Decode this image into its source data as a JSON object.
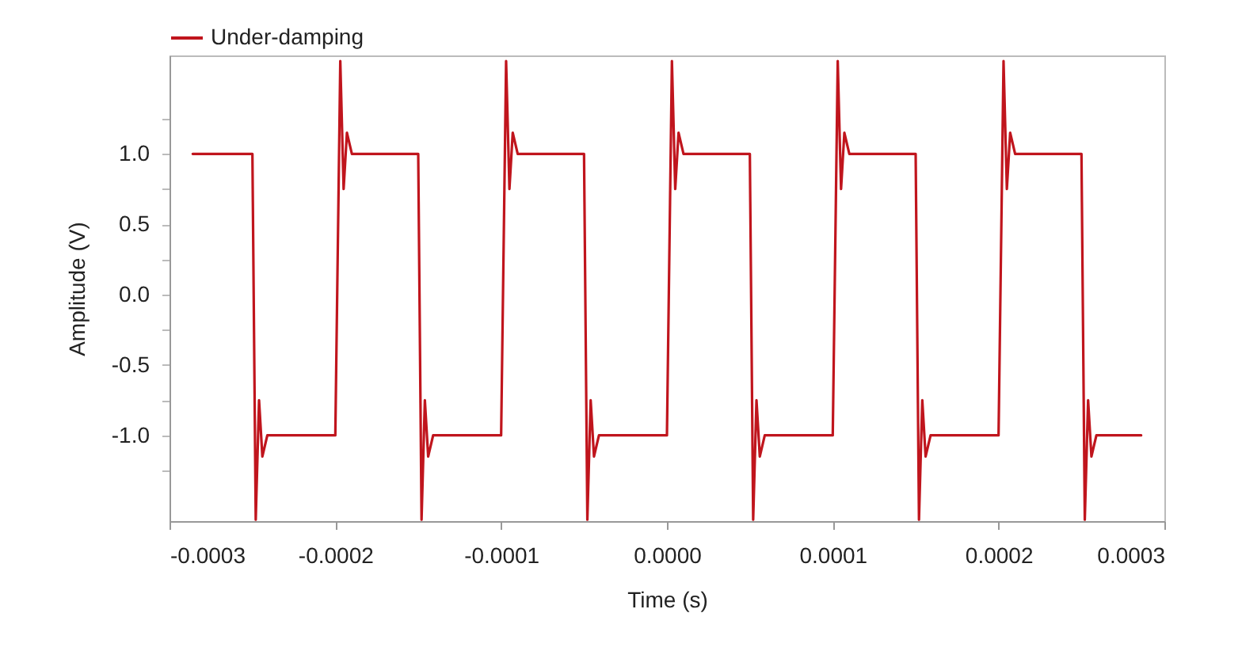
{
  "chart_data": {
    "type": "line",
    "xlabel": "Time (s)",
    "ylabel": "Amplitude (V)",
    "legend": "top",
    "xlim": [
      -0.0003,
      0.0003
    ],
    "ylim": [
      -1.61,
      1.7
    ],
    "xticks": [
      {
        "value": -0.0003,
        "label": "-0.0003"
      },
      {
        "value": -0.0002,
        "label": "-0.0002"
      },
      {
        "value": -0.0001,
        "label": "-0.0001"
      },
      {
        "value": 0,
        "label": "0.0000"
      },
      {
        "value": 0.0001,
        "label": "0.0001"
      },
      {
        "value": 0.0002,
        "label": "0.0002"
      },
      {
        "value": 0.0003,
        "label": "0.0003"
      }
    ],
    "yticks": [
      {
        "value": -1.25,
        "label": null
      },
      {
        "value": -1,
        "label": "-1.0"
      },
      {
        "value": -0.75,
        "label": null
      },
      {
        "value": -0.5,
        "label": "-0.5"
      },
      {
        "value": -0.25,
        "label": null
      },
      {
        "value": 0,
        "label": "0.0"
      },
      {
        "value": 0.25,
        "label": null
      },
      {
        "value": 0.5,
        "label": "0.5"
      },
      {
        "value": 0.75,
        "label": null
      },
      {
        "value": 1,
        "label": "1.0"
      },
      {
        "value": 1.25,
        "label": null
      }
    ],
    "series": [
      {
        "name": "Under-damping",
        "color": "#c0151d",
        "x": [
          -0.000286,
          -0.00025,
          -0.000248,
          -0.000246,
          -0.000244,
          -0.000241,
          -0.0002,
          -0.000197,
          -0.000195,
          -0.000193,
          -0.00019,
          -0.00015,
          -0.000148,
          -0.000146,
          -0.000144,
          -0.000141,
          -0.0001,
          -9.7e-05,
          -9.5e-05,
          -9.3e-05,
          -9e-05,
          -5e-05,
          -4.8e-05,
          -4.6e-05,
          -4.4e-05,
          -4.1e-05,
          0,
          3e-06,
          5e-06,
          7e-06,
          1e-05,
          5e-05,
          5.2e-05,
          5.4e-05,
          5.6e-05,
          5.9e-05,
          0.0001,
          0.000103,
          0.000105,
          0.000107,
          0.00011,
          0.00015,
          0.000152,
          0.000154,
          0.000156,
          0.000159,
          0.0002,
          0.000203,
          0.000205,
          0.000207,
          0.00021,
          0.00025,
          0.000252,
          0.000254,
          0.000256,
          0.000259,
          0.000286
        ],
        "values": [
          1,
          1,
          -1.6,
          -0.75,
          -1.15,
          -1,
          -1,
          1.66,
          0.75,
          1.15,
          1,
          1,
          -1.6,
          -0.75,
          -1.15,
          -1,
          -1,
          1.66,
          0.75,
          1.15,
          1,
          1,
          -1.6,
          -0.75,
          -1.15,
          -1,
          -1,
          1.66,
          0.75,
          1.15,
          1,
          1,
          -1.6,
          -0.75,
          -1.15,
          -1,
          -1,
          1.66,
          0.75,
          1.15,
          1,
          1,
          -1.6,
          -0.75,
          -1.15,
          -1,
          -1,
          1.66,
          0.75,
          1.15,
          1,
          1,
          -1.6,
          -0.75,
          -1.15,
          -1,
          -1
        ]
      }
    ]
  }
}
